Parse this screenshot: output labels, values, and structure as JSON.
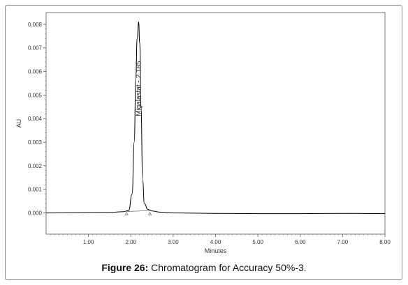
{
  "chart_data": {
    "type": "line",
    "xlabel": "Minutes",
    "ylabel": "AU",
    "xlim": [
      0,
      8.0
    ],
    "ylim": [
      -0.0009,
      0.0085
    ],
    "xticks": [
      "1.00",
      "2.00",
      "3.00",
      "4.00",
      "5.00",
      "6.00",
      "7.00",
      "8.00"
    ],
    "xtick_values": [
      1,
      2,
      3,
      4,
      5,
      6,
      7,
      8
    ],
    "yticks": [
      "0.000",
      "0.001",
      "0.002",
      "0.003",
      "0.004",
      "0.005",
      "0.006",
      "0.007",
      "0.008"
    ],
    "ytick_values": [
      0,
      0.001,
      0.002,
      0.003,
      0.004,
      0.005,
      0.006,
      0.007,
      0.008
    ],
    "grid": false,
    "series": [
      {
        "x": [
          0,
          1.5,
          1.8,
          1.95,
          2.03,
          2.08,
          2.12,
          2.15,
          2.185,
          2.21,
          2.24,
          2.28,
          2.32,
          2.4,
          2.5,
          2.7,
          3.0,
          4.0,
          5.0,
          6.0,
          7.0,
          8.0
        ],
        "y": [
          0.0,
          2e-05,
          5e-05,
          0.0001,
          0.0008,
          0.003,
          0.0058,
          0.0074,
          0.0081,
          0.0072,
          0.0045,
          0.0014,
          0.0004,
          0.00015,
          8e-05,
          3e-05,
          0.0,
          -2e-05,
          -3e-05,
          -3e-05,
          -2e-05,
          -3e-05
        ]
      }
    ],
    "annotations": [
      {
        "text": "Migalastat - 2.185",
        "x": 2.185
      }
    ],
    "integration_markers": [
      1.9,
      2.45
    ]
  },
  "caption": {
    "figure_label": "Figure 26:",
    "text": "Chromatogram for Accuracy 50%-3."
  }
}
